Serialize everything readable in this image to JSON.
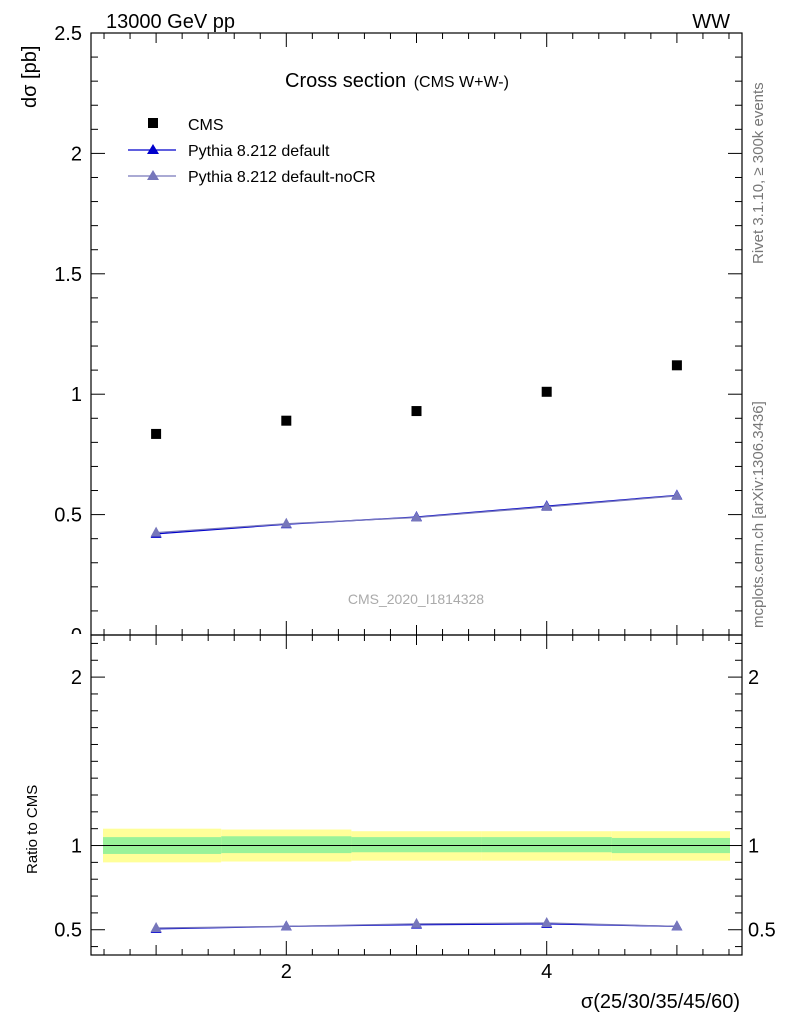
{
  "header": {
    "left": "13000 GeV pp",
    "right": "WW"
  },
  "side_labels": {
    "rivet": "Rivet 3.1.10, ≥ 300k events",
    "mcplots": "mcplots.cern.ch [arXiv:1306.3436]"
  },
  "watermark": "CMS_2020_I1814328",
  "colors": {
    "cms": "#000000",
    "pythia_default": "#0000cc",
    "pythia_nocr": "#7777bb",
    "band_inner": "#99f299",
    "band_outer": "#ffff99"
  },
  "chart_data": [
    {
      "type": "scatter",
      "title": "Cross section",
      "subtitle": "(CMS W+W-)",
      "ylabel": "dσ [pb]",
      "xlabel": "σ(25/30/35/45/60)",
      "xlim": [
        0.5,
        5.5
      ],
      "ylim": [
        0,
        2.5
      ],
      "yticks": [
        0.5,
        1,
        1.5,
        2,
        2.5
      ],
      "yticklabels": [
        "0.5",
        "1",
        "1.5",
        "2",
        "2.5"
      ],
      "legend_placement": "top-left",
      "series": [
        {
          "name": "CMS",
          "marker": "square",
          "x": [
            1,
            2,
            3,
            4,
            5
          ],
          "y": [
            0.835,
            0.89,
            0.93,
            1.01,
            1.12
          ]
        },
        {
          "name": "Pythia 8.212 default",
          "marker": "triangle",
          "x": [
            1,
            2,
            3,
            4,
            5
          ],
          "y": [
            0.42,
            0.46,
            0.49,
            0.535,
            0.58
          ]
        },
        {
          "name": "Pythia 8.212 default-noCR",
          "marker": "triangle",
          "x": [
            1,
            2,
            3,
            4,
            5
          ],
          "y": [
            0.425,
            0.462,
            0.488,
            0.532,
            0.578
          ]
        }
      ]
    },
    {
      "type": "line",
      "ylabel": "Ratio to CMS",
      "xlabel": "σ(25/30/35/45/60)",
      "xlim": [
        0.5,
        5.5
      ],
      "ylim": [
        0.35,
        2.25
      ],
      "yticks": [
        0.5,
        1,
        2
      ],
      "yticklabels": [
        "0.5",
        "1",
        "2"
      ],
      "xticks": [
        2,
        4
      ],
      "xticklabels": [
        "2",
        "4"
      ],
      "bands": {
        "x_edges": [
          0.5,
          1.5,
          2.5,
          3.5,
          4.5,
          5.5
        ],
        "inner": [
          [
            0.95,
            1.05
          ],
          [
            0.955,
            1.055
          ],
          [
            0.96,
            1.05
          ],
          [
            0.96,
            1.05
          ],
          [
            0.955,
            1.045
          ]
        ],
        "outer": [
          [
            0.9,
            1.1
          ],
          [
            0.905,
            1.095
          ],
          [
            0.91,
            1.085
          ],
          [
            0.91,
            1.085
          ],
          [
            0.91,
            1.085
          ]
        ]
      },
      "series": [
        {
          "name": "Pythia 8.212 default",
          "x": [
            1,
            2,
            3,
            4,
            5
          ],
          "y": [
            0.505,
            0.52,
            0.53,
            0.535,
            0.52
          ]
        },
        {
          "name": "Pythia 8.212 default-noCR",
          "x": [
            1,
            2,
            3,
            4,
            5
          ],
          "y": [
            0.51,
            0.52,
            0.535,
            0.54,
            0.52
          ]
        }
      ]
    }
  ]
}
